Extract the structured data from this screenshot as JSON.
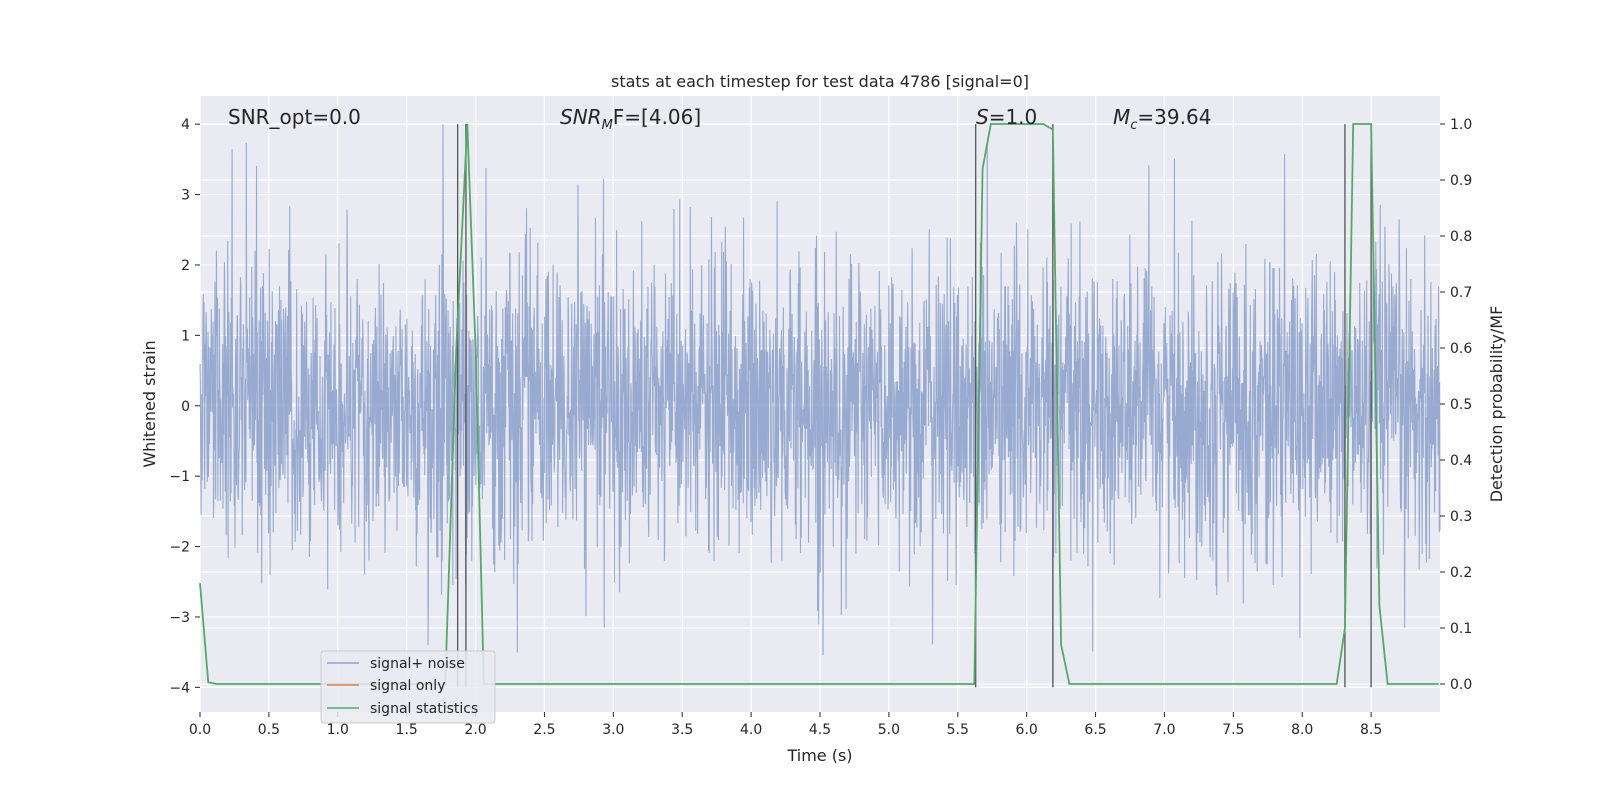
{
  "chart_data": {
    "type": "line",
    "title": "stats at each timestep for test data 4786 [signal=0]",
    "xlabel": "Time (s)",
    "ylabel_left": "Whitened strain",
    "ylabel_right": "Detection probability/MF",
    "xlim": [
      0,
      9.0
    ],
    "ylim_left": [
      -4.35,
      4.4
    ],
    "ylim_right": [
      -0.05,
      1.05
    ],
    "x_ticks": [
      "0.0",
      "0.5",
      "1.0",
      "1.5",
      "2.0",
      "2.5",
      "3.0",
      "3.5",
      "4.0",
      "4.5",
      "5.0",
      "5.5",
      "6.0",
      "6.5",
      "7.0",
      "7.5",
      "8.0",
      "8.5"
    ],
    "x_tick_values": [
      0.0,
      0.5,
      1.0,
      1.5,
      2.0,
      2.5,
      3.0,
      3.5,
      4.0,
      4.5,
      5.0,
      5.5,
      6.0,
      6.5,
      7.0,
      7.5,
      8.0,
      8.5
    ],
    "y_left_ticks": [
      "−4",
      "−3",
      "−2",
      "−1",
      "0",
      "1",
      "2",
      "3",
      "4"
    ],
    "y_left_tick_values": [
      -4,
      -3,
      -2,
      -1,
      0,
      1,
      2,
      3,
      4
    ],
    "y_right_ticks": [
      "0.0",
      "0.1",
      "0.2",
      "0.3",
      "0.4",
      "0.5",
      "0.6",
      "0.7",
      "0.8",
      "0.9",
      "1.0"
    ],
    "y_right_tick_values": [
      0.0,
      0.1,
      0.2,
      0.3,
      0.4,
      0.5,
      0.6,
      0.7,
      0.8,
      0.9,
      1.0
    ],
    "grid": true,
    "legend_placement": "lower-left",
    "annotations": {
      "snr_opt": "SNR_opt=0.0",
      "snr_mf_main": "SNR",
      "snr_mf_sub": "M",
      "snr_mf_rest": "F=[4.06]",
      "s_main": "S",
      "s_rest": "=1.0",
      "mc_main": "M",
      "mc_sub": "c",
      "mc_rest": "=39.64"
    },
    "series": [
      {
        "name": "signal+ noise",
        "color": "#8fa3cc",
        "axis": "left",
        "description_range": [
          -3.6,
          4.0
        ]
      },
      {
        "name": "signal only",
        "color": "#dd8452",
        "axis": "left",
        "x": [],
        "y": []
      },
      {
        "name": "signal statistics",
        "color": "#55a868",
        "axis": "right",
        "x": [
          0.0,
          0.06,
          0.12,
          1.78,
          1.86,
          1.94,
          2.0,
          2.06,
          5.62,
          5.68,
          5.74,
          6.12,
          6.19,
          6.25,
          6.31,
          8.25,
          8.31,
          8.37,
          8.43,
          8.5,
          8.56,
          8.62,
          8.99
        ],
        "y": [
          0.18,
          0.003,
          0.0,
          0.0,
          0.6,
          1.0,
          0.6,
          0.0,
          0.0,
          0.92,
          1.0,
          1.0,
          0.99,
          0.07,
          0.0,
          0.0,
          0.1,
          1.0,
          1.0,
          1.0,
          0.14,
          0.0,
          0.0
        ]
      }
    ],
    "vertical_lines": [
      1.87,
      1.93,
      5.63,
      6.19,
      8.31,
      8.5
    ]
  }
}
